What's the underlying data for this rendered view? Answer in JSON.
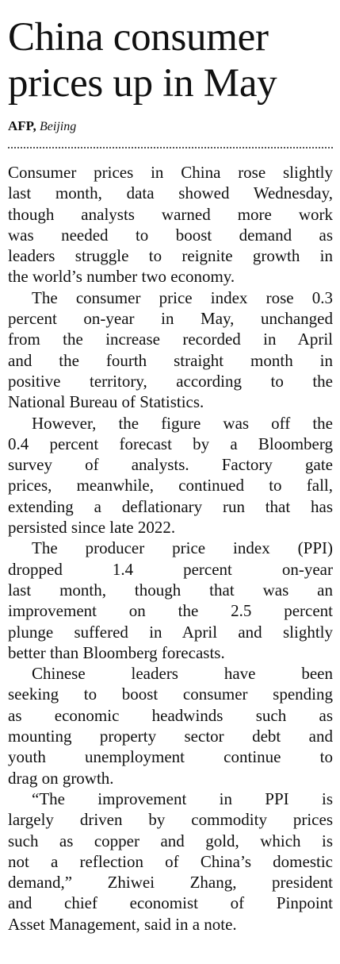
{
  "headline": [
    "China consumer",
    "prices up in May"
  ],
  "byline": {
    "agency": "AFP,",
    "place": "Beijing"
  },
  "paragraphs": [
    [
      "Consumer prices in China rose slightly",
      "last month, data showed Wednesday,",
      "though analysts warned more work",
      "was needed to boost demand as",
      "leaders struggle to reignite growth in",
      "the world’s number two economy."
    ],
    [
      "The consumer price index rose 0.3",
      "percent on-year in May, unchanged",
      "from the increase recorded in April",
      "and the fourth straight month in",
      "positive territory, according to the",
      "National Bureau of Statistics."
    ],
    [
      "However, the figure was off the",
      "0.4 percent forecast by a Bloomberg",
      "survey of analysts. Factory gate",
      "prices, meanwhile, continued to fall,",
      "extending a deflationary run that has",
      "persisted since late 2022."
    ],
    [
      "The producer price index (PPI)",
      "dropped 1.4 percent on-year",
      "last month, though that was an",
      "improvement on the 2.5 percent",
      "plunge suffered in April and slightly",
      "better than Bloomberg forecasts."
    ],
    [
      "Chinese leaders have been",
      "seeking to boost consumer spending",
      "as economic headwinds such as",
      "mounting property sector debt and",
      "youth unemployment continue to",
      "drag on growth."
    ],
    [
      "“The improvement in PPI is",
      "largely driven by commodity prices",
      "such as copper and gold, which is",
      "not a reflection of China’s domestic",
      "demand,” Zhiwei Zhang, president",
      "and chief economist of Pinpoint",
      "Asset Management, said in a note."
    ]
  ]
}
